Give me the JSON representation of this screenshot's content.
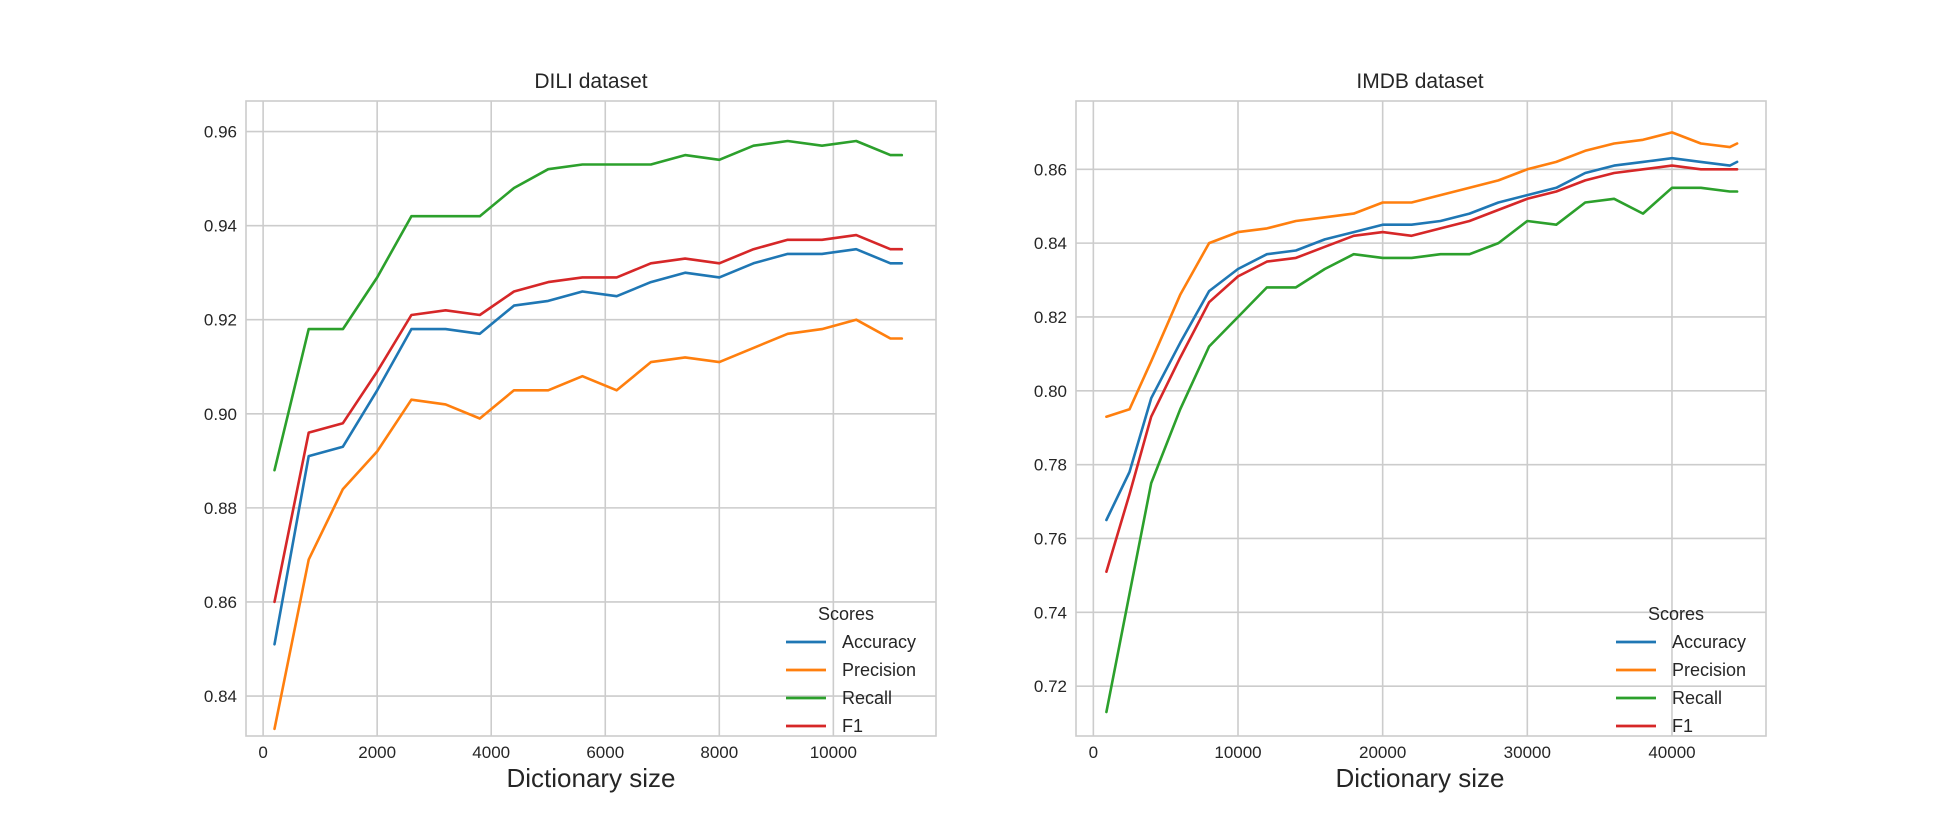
{
  "chart_data": [
    {
      "type": "line",
      "title": "DILI dataset",
      "xlabel": "Dictionary size",
      "ylabel": "",
      "xlim": [
        -300,
        11800
      ],
      "ylim": [
        0.8315,
        0.9665
      ],
      "xticks": [
        0,
        2000,
        4000,
        6000,
        8000,
        10000
      ],
      "yticks": [
        0.84,
        0.86,
        0.88,
        0.9,
        0.92,
        0.94,
        0.96
      ],
      "ytick_labels": [
        "0.84",
        "0.86",
        "0.88",
        "0.90",
        "0.92",
        "0.94",
        "0.96"
      ],
      "grid": true,
      "legend": {
        "title": "Scores",
        "placement": "lower-right"
      },
      "series": [
        {
          "name": "Accuracy",
          "color": "#1f77b4",
          "x": [
            200,
            800,
            1400,
            2000,
            2600,
            3200,
            3800,
            4400,
            5000,
            5600,
            6200,
            6800,
            7400,
            8000,
            8600,
            9200,
            9800,
            10400,
            11000,
            11200
          ],
          "y": [
            0.851,
            0.891,
            0.893,
            0.905,
            0.918,
            0.918,
            0.917,
            0.923,
            0.924,
            0.926,
            0.925,
            0.928,
            0.93,
            0.929,
            0.932,
            0.934,
            0.934,
            0.935,
            0.932,
            0.932
          ]
        },
        {
          "name": "Precision",
          "color": "#ff7f0e",
          "x": [
            200,
            800,
            1400,
            2000,
            2600,
            3200,
            3800,
            4400,
            5000,
            5600,
            6200,
            6800,
            7400,
            8000,
            8600,
            9200,
            9800,
            10400,
            11000,
            11200
          ],
          "y": [
            0.833,
            0.869,
            0.884,
            0.892,
            0.903,
            0.902,
            0.899,
            0.905,
            0.905,
            0.908,
            0.905,
            0.911,
            0.912,
            0.911,
            0.914,
            0.917,
            0.918,
            0.92,
            0.916,
            0.916
          ]
        },
        {
          "name": "Recall",
          "color": "#2ca02c",
          "x": [
            200,
            800,
            1400,
            2000,
            2600,
            3200,
            3800,
            4400,
            5000,
            5600,
            6200,
            6800,
            7400,
            8000,
            8600,
            9200,
            9800,
            10400,
            11000,
            11200
          ],
          "y": [
            0.888,
            0.918,
            0.918,
            0.929,
            0.942,
            0.942,
            0.942,
            0.948,
            0.952,
            0.953,
            0.953,
            0.953,
            0.955,
            0.954,
            0.957,
            0.958,
            0.957,
            0.958,
            0.955,
            0.955
          ]
        },
        {
          "name": "F1",
          "color": "#d62728",
          "x": [
            200,
            800,
            1400,
            2000,
            2600,
            3200,
            3800,
            4400,
            5000,
            5600,
            6200,
            6800,
            7400,
            8000,
            8600,
            9200,
            9800,
            10400,
            11000,
            11200
          ],
          "y": [
            0.86,
            0.896,
            0.898,
            0.909,
            0.921,
            0.922,
            0.921,
            0.926,
            0.928,
            0.929,
            0.929,
            0.932,
            0.933,
            0.932,
            0.935,
            0.937,
            0.937,
            0.938,
            0.935,
            0.935
          ]
        }
      ]
    },
    {
      "type": "line",
      "title": "IMDB dataset",
      "xlabel": "Dictionary size",
      "ylabel": "",
      "xlim": [
        -1200,
        46500
      ],
      "ylim": [
        0.7065,
        0.8785
      ],
      "xticks": [
        0,
        10000,
        20000,
        30000,
        40000
      ],
      "yticks": [
        0.72,
        0.74,
        0.76,
        0.78,
        0.8,
        0.82,
        0.84,
        0.86
      ],
      "ytick_labels": [
        "0.72",
        "0.74",
        "0.76",
        "0.78",
        "0.80",
        "0.82",
        "0.84",
        "0.86"
      ],
      "grid": true,
      "legend": {
        "title": "Scores",
        "placement": "lower-right"
      },
      "series": [
        {
          "name": "Accuracy",
          "color": "#1f77b4",
          "x": [
            900,
            2500,
            4000,
            6000,
            8000,
            10000,
            12000,
            14000,
            16000,
            18000,
            20000,
            22000,
            24000,
            26000,
            28000,
            30000,
            32000,
            34000,
            36000,
            38000,
            40000,
            42000,
            44000,
            44500
          ],
          "y": [
            0.765,
            0.778,
            0.798,
            0.813,
            0.827,
            0.833,
            0.837,
            0.838,
            0.841,
            0.843,
            0.845,
            0.845,
            0.846,
            0.848,
            0.851,
            0.853,
            0.855,
            0.859,
            0.861,
            0.862,
            0.863,
            0.862,
            0.861,
            0.862
          ]
        },
        {
          "name": "Precision",
          "color": "#ff7f0e",
          "x": [
            900,
            2500,
            4000,
            6000,
            8000,
            10000,
            12000,
            14000,
            16000,
            18000,
            20000,
            22000,
            24000,
            26000,
            28000,
            30000,
            32000,
            34000,
            36000,
            38000,
            40000,
            42000,
            44000,
            44500
          ],
          "y": [
            0.793,
            0.795,
            0.808,
            0.826,
            0.84,
            0.843,
            0.844,
            0.846,
            0.847,
            0.848,
            0.851,
            0.851,
            0.853,
            0.855,
            0.857,
            0.86,
            0.862,
            0.865,
            0.867,
            0.868,
            0.87,
            0.867,
            0.866,
            0.867
          ]
        },
        {
          "name": "Recall",
          "color": "#2ca02c",
          "x": [
            900,
            2500,
            4000,
            6000,
            8000,
            10000,
            12000,
            14000,
            16000,
            18000,
            20000,
            22000,
            24000,
            26000,
            28000,
            30000,
            32000,
            34000,
            36000,
            38000,
            40000,
            42000,
            44000,
            44500
          ],
          "y": [
            0.713,
            0.745,
            0.775,
            0.795,
            0.812,
            0.82,
            0.828,
            0.828,
            0.833,
            0.837,
            0.836,
            0.836,
            0.837,
            0.837,
            0.84,
            0.846,
            0.845,
            0.851,
            0.852,
            0.848,
            0.855,
            0.855,
            0.854,
            0.854
          ]
        },
        {
          "name": "F1",
          "color": "#d62728",
          "x": [
            900,
            2500,
            4000,
            6000,
            8000,
            10000,
            12000,
            14000,
            16000,
            18000,
            20000,
            22000,
            24000,
            26000,
            28000,
            30000,
            32000,
            34000,
            36000,
            38000,
            40000,
            42000,
            44000,
            44500
          ],
          "y": [
            0.751,
            0.772,
            0.793,
            0.809,
            0.824,
            0.831,
            0.835,
            0.836,
            0.839,
            0.842,
            0.843,
            0.842,
            0.844,
            0.846,
            0.849,
            0.852,
            0.854,
            0.857,
            0.859,
            0.86,
            0.861,
            0.86,
            0.86,
            0.86
          ]
        }
      ]
    }
  ]
}
